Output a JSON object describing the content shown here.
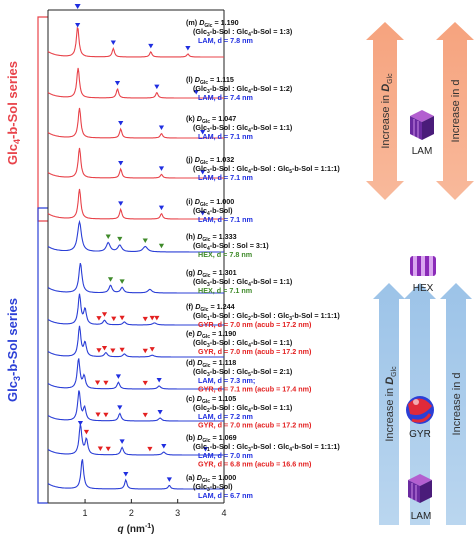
{
  "chart_data": {
    "type": "line",
    "xlabel_base": "q",
    "xlabel_unit": "(nm",
    "xlabel_exp": "-1",
    "xlabel_close": ")",
    "xlim": [
      0.2,
      4.0
    ],
    "x_ticks": [
      "1",
      "2",
      "3",
      "4"
    ],
    "y_axis": "stacked intensity profiles (offset), no tick labels",
    "grid": false,
    "series_groups": {
      "top": {
        "label_main": "Glc",
        "label_sub": "4",
        "label_rest": "-b-Sol series",
        "color": "#e8434a"
      },
      "bottom": {
        "label_main": "Glc",
        "label_sub": "3",
        "label_rest": "-b-Sol series",
        "color": "#2b3fd6"
      }
    },
    "principal_peak_q": 0.84,
    "marker_colors": {
      "LAM": "#1f2ee0",
      "HEX": "#3f8a2a",
      "GYR": "#e32020"
    },
    "series": [
      {
        "id": "m",
        "group": "top",
        "prefix": "(m)",
        "d_value": "= 1.190",
        "comp": [
          [
            "(Glc",
            ""
          ],
          [
            "3",
            "sub"
          ],
          [
            "-b-Sol : Glc",
            ""
          ],
          [
            "4",
            "sub"
          ],
          [
            "-b-Sol = 1:3)",
            ""
          ]
        ],
        "phases": [
          {
            "kind": "LAM",
            "text": "LAM, d = 7.8 nm"
          }
        ],
        "peaks": [
          {
            "q": 0.84,
            "h": 1.0,
            "w": 0.035
          },
          {
            "q": 1.61,
            "h": 0.28,
            "w": 0.03
          },
          {
            "q": 2.42,
            "h": 0.17,
            "w": 0.03
          },
          {
            "q": 3.22,
            "h": 0.1,
            "w": 0.03
          }
        ],
        "markers": [
          {
            "q": 0.84,
            "kind": "LAM"
          },
          {
            "q": 1.61,
            "kind": "LAM"
          },
          {
            "q": 2.42,
            "kind": "LAM"
          },
          {
            "q": 3.22,
            "kind": "LAM"
          }
        ]
      },
      {
        "id": "l",
        "group": "top",
        "prefix": "(l)",
        "d_value": "= 1.115",
        "comp": [
          [
            "(Glc",
            ""
          ],
          [
            "3",
            "sub"
          ],
          [
            "-b-Sol : Glc",
            ""
          ],
          [
            "4",
            "sub"
          ],
          [
            "-b-Sol = 1:2)",
            ""
          ]
        ],
        "phases": [
          {
            "kind": "LAM",
            "text": "LAM, d = 7.4 nm"
          }
        ],
        "peaks": [
          {
            "q": 0.85,
            "h": 1.0,
            "w": 0.035
          },
          {
            "q": 1.7,
            "h": 0.3,
            "w": 0.03
          },
          {
            "q": 2.55,
            "h": 0.18,
            "w": 0.03
          }
        ],
        "markers": [
          {
            "q": 1.7,
            "kind": "LAM"
          },
          {
            "q": 2.55,
            "kind": "LAM"
          },
          {
            "q": 3.4,
            "kind": "LAM"
          }
        ]
      },
      {
        "id": "k",
        "group": "top",
        "prefix": "(k)",
        "d_value": "= 1.047",
        "comp": [
          [
            "(Glc",
            ""
          ],
          [
            "3",
            "sub"
          ],
          [
            "-b-Sol : Glc",
            ""
          ],
          [
            "4",
            "sub"
          ],
          [
            "-b-Sol = 1:1)",
            ""
          ]
        ],
        "phases": [
          {
            "kind": "LAM",
            "text": "LAM, d = 7.1 nm"
          }
        ],
        "peaks": [
          {
            "q": 0.88,
            "h": 1.0,
            "w": 0.035
          },
          {
            "q": 1.77,
            "h": 0.3,
            "w": 0.03
          },
          {
            "q": 2.65,
            "h": 0.15,
            "w": 0.03
          }
        ],
        "markers": [
          {
            "q": 1.77,
            "kind": "LAM"
          },
          {
            "q": 2.65,
            "kind": "LAM"
          },
          {
            "q": 3.54,
            "kind": "LAM"
          }
        ]
      },
      {
        "id": "j",
        "group": "top",
        "prefix": "(j)",
        "d_value": "= 1.032",
        "comp": [
          [
            "(Glc",
            ""
          ],
          [
            "3",
            "sub"
          ],
          [
            "-b-Sol : Glc",
            ""
          ],
          [
            "4",
            "sub"
          ],
          [
            "-b-Sol : Glc",
            ""
          ],
          [
            "5",
            "sub"
          ],
          [
            "-b-Sol = 1:1:1)",
            ""
          ]
        ],
        "phases": [
          {
            "kind": "LAM",
            "text": "LAM, d = 7.1 nm"
          }
        ],
        "peaks": [
          {
            "q": 0.88,
            "h": 1.0,
            "w": 0.035
          },
          {
            "q": 1.77,
            "h": 0.3,
            "w": 0.03
          },
          {
            "q": 2.65,
            "h": 0.12,
            "w": 0.03
          }
        ],
        "markers": [
          {
            "q": 1.77,
            "kind": "LAM"
          },
          {
            "q": 2.65,
            "kind": "LAM"
          },
          {
            "q": 3.54,
            "kind": "LAM"
          }
        ]
      },
      {
        "id": "i",
        "group": "top",
        "prefix": "(i)",
        "d_value": "= 1.000",
        "comp": [
          [
            "(Glc",
            ""
          ],
          [
            "4",
            "sub"
          ],
          [
            "-b-Sol)",
            ""
          ]
        ],
        "phases": [
          {
            "kind": "LAM",
            "text": "LAM, d = 7.1 nm"
          }
        ],
        "peaks": [
          {
            "q": 0.88,
            "h": 1.0,
            "w": 0.035
          },
          {
            "q": 1.77,
            "h": 0.32,
            "w": 0.03
          },
          {
            "q": 2.65,
            "h": 0.18,
            "w": 0.03
          }
        ],
        "markers": [
          {
            "q": 1.77,
            "kind": "LAM"
          },
          {
            "q": 2.65,
            "kind": "LAM"
          },
          {
            "q": 3.54,
            "kind": "LAM"
          }
        ]
      },
      {
        "id": "h",
        "group": "bottom",
        "prefix": "(h)",
        "d_value": "= 1.333",
        "comp": [
          [
            "(Glc",
            ""
          ],
          [
            "4",
            "sub"
          ],
          [
            "-b-Sol : Sol = 3:1)",
            ""
          ]
        ],
        "phases": [
          {
            "kind": "HEX",
            "text": "HEX, d = 7.8 nm"
          }
        ],
        "peaks": [
          {
            "q": 0.88,
            "h": 1.0,
            "w": 0.05
          },
          {
            "q": 1.5,
            "h": 0.3,
            "w": 0.05
          },
          {
            "q": 1.75,
            "h": 0.22,
            "w": 0.05
          },
          {
            "q": 2.3,
            "h": 0.18,
            "w": 0.06
          }
        ],
        "markers": [
          {
            "q": 1.5,
            "kind": "HEX"
          },
          {
            "q": 1.75,
            "kind": "HEX"
          },
          {
            "q": 2.3,
            "kind": "HEX"
          },
          {
            "q": 2.65,
            "kind": "HEX"
          }
        ]
      },
      {
        "id": "g",
        "group": "bottom",
        "prefix": "(g)",
        "d_value": "= 1.301",
        "comp": [
          [
            "(Glc",
            ""
          ],
          [
            "3",
            "sub"
          ],
          [
            "-b-Sol : Glc",
            ""
          ],
          [
            "4",
            "sub"
          ],
          [
            "-b-Sol = 1:1)",
            ""
          ]
        ],
        "phases": [
          {
            "kind": "HEX",
            "text": "HEX, d = 7.1 nm"
          }
        ],
        "peaks": [
          {
            "q": 0.9,
            "h": 1.0,
            "w": 0.04
          },
          {
            "q": 1.55,
            "h": 0.25,
            "w": 0.04
          },
          {
            "q": 1.8,
            "h": 0.18,
            "w": 0.04
          },
          {
            "q": 2.4,
            "h": 0.12,
            "w": 0.05
          }
        ],
        "markers": [
          {
            "q": 1.55,
            "kind": "HEX"
          },
          {
            "q": 1.8,
            "kind": "HEX"
          }
        ]
      },
      {
        "id": "f",
        "group": "bottom",
        "prefix": "(f)",
        "d_value": "= 1.244",
        "comp": [
          [
            "(Glc",
            ""
          ],
          [
            "1",
            "sub"
          ],
          [
            "-b-Sol : Glc",
            ""
          ],
          [
            "2",
            "sub"
          ],
          [
            "-b-Sol : Glc",
            ""
          ],
          [
            "3",
            "sub"
          ],
          [
            "-b-Sol = 1:1:1)",
            ""
          ]
        ],
        "phases": [
          {
            "kind": "GYR",
            "text": "GYR, d = 7.0 nm (acub = 17.2 nm)"
          }
        ],
        "peaks": [
          {
            "q": 0.88,
            "h": 1.0,
            "w": 0.035
          },
          {
            "q": 1.0,
            "h": 0.5,
            "w": 0.035
          },
          {
            "q": 1.42,
            "h": 0.15,
            "w": 0.04
          },
          {
            "q": 1.85,
            "h": 0.1,
            "w": 0.04
          },
          {
            "q": 2.5,
            "h": 0.07,
            "w": 0.05
          }
        ],
        "markers": [
          {
            "q": 1.3,
            "kind": "GYR"
          },
          {
            "q": 1.42,
            "kind": "GYR"
          },
          {
            "q": 1.62,
            "kind": "GYR"
          },
          {
            "q": 1.8,
            "kind": "GYR"
          },
          {
            "q": 2.3,
            "kind": "GYR"
          },
          {
            "q": 2.45,
            "kind": "GYR"
          },
          {
            "q": 2.55,
            "kind": "GYR"
          }
        ]
      },
      {
        "id": "e",
        "group": "bottom",
        "prefix": "(e)",
        "d_value": "= 1.190",
        "comp": [
          [
            "(Glc",
            ""
          ],
          [
            "3",
            "sub"
          ],
          [
            "-b-Sol : Glc",
            ""
          ],
          [
            "4",
            "sub"
          ],
          [
            "-b-Sol = 1:1)",
            ""
          ]
        ],
        "phases": [
          {
            "kind": "GYR",
            "text": "GYR, d = 7.0 nm (acub = 17.2 nm)"
          }
        ],
        "peaks": [
          {
            "q": 0.88,
            "h": 1.0,
            "w": 0.035
          },
          {
            "q": 1.0,
            "h": 0.45,
            "w": 0.035
          },
          {
            "q": 1.45,
            "h": 0.14,
            "w": 0.04
          },
          {
            "q": 1.85,
            "h": 0.1,
            "w": 0.04
          },
          {
            "q": 2.45,
            "h": 0.06,
            "w": 0.05
          }
        ],
        "markers": [
          {
            "q": 1.3,
            "kind": "GYR"
          },
          {
            "q": 1.42,
            "kind": "GYR"
          },
          {
            "q": 1.6,
            "kind": "GYR"
          },
          {
            "q": 1.8,
            "kind": "GYR"
          },
          {
            "q": 2.3,
            "kind": "GYR"
          },
          {
            "q": 2.45,
            "kind": "GYR"
          }
        ]
      },
      {
        "id": "d",
        "group": "bottom",
        "prefix": "(d)",
        "d_value": "= 1.118",
        "comp": [
          [
            "(Glc",
            ""
          ],
          [
            "3",
            "sub"
          ],
          [
            "-b-Sol : Glc",
            ""
          ],
          [
            "5",
            "sub"
          ],
          [
            "-b-Sol = 2:1)",
            ""
          ]
        ],
        "phases": [
          {
            "kind": "LAM",
            "text": "LAM, d = 7.3 nm;"
          },
          {
            "kind": "GYR",
            "text": "GYR, d = 7.1 nm (acub = 17.4 nm)"
          }
        ],
        "peaks": [
          {
            "q": 0.86,
            "h": 1.0,
            "w": 0.035
          },
          {
            "q": 0.98,
            "h": 0.4,
            "w": 0.035
          },
          {
            "q": 1.72,
            "h": 0.22,
            "w": 0.035
          },
          {
            "q": 2.6,
            "h": 0.1,
            "w": 0.04
          }
        ],
        "markers": [
          {
            "q": 1.27,
            "kind": "GYR"
          },
          {
            "q": 1.45,
            "kind": "GYR"
          },
          {
            "q": 1.72,
            "kind": "LAM"
          },
          {
            "q": 2.3,
            "kind": "GYR"
          },
          {
            "q": 2.6,
            "kind": "LAM"
          }
        ]
      },
      {
        "id": "c",
        "group": "bottom",
        "prefix": "(c)",
        "d_value": "= 1.105",
        "comp": [
          [
            "(Glc",
            ""
          ],
          [
            "2",
            "sub"
          ],
          [
            "-b-Sol : Glc",
            ""
          ],
          [
            "4",
            "sub"
          ],
          [
            "-b-Sol = 1:1)",
            ""
          ]
        ],
        "phases": [
          {
            "kind": "LAM",
            "text": "LAM, d = 7.2 nm"
          },
          {
            "kind": "GYR",
            "text": "GYR, d = 7.0 nm (acub = 17.2 nm)"
          }
        ],
        "peaks": [
          {
            "q": 0.87,
            "h": 1.0,
            "w": 0.035
          },
          {
            "q": 0.99,
            "h": 0.42,
            "w": 0.035
          },
          {
            "q": 1.75,
            "h": 0.25,
            "w": 0.035
          },
          {
            "q": 2.62,
            "h": 0.1,
            "w": 0.04
          }
        ],
        "markers": [
          {
            "q": 1.28,
            "kind": "GYR"
          },
          {
            "q": 1.45,
            "kind": "GYR"
          },
          {
            "q": 1.75,
            "kind": "LAM"
          },
          {
            "q": 2.3,
            "kind": "GYR"
          },
          {
            "q": 2.62,
            "kind": "LAM"
          }
        ]
      },
      {
        "id": "b",
        "group": "bottom",
        "prefix": "(b)",
        "d_value": "= 1.069",
        "comp": [
          [
            "(Glc",
            ""
          ],
          [
            "1",
            "sub"
          ],
          [
            "-b-Sol : Glc",
            ""
          ],
          [
            "3",
            "sub"
          ],
          [
            "-b-Sol : Glc",
            ""
          ],
          [
            "4",
            "sub"
          ],
          [
            "-b-Sol = 1:1:1)",
            ""
          ]
        ],
        "phases": [
          {
            "kind": "LAM",
            "text": "LAM, d = 7.0 nm"
          },
          {
            "kind": "GYR",
            "text": "GYR, d = 6.8 nm (acub = 16.6 nm)"
          }
        ],
        "peaks": [
          {
            "q": 0.9,
            "h": 1.0,
            "w": 0.035
          },
          {
            "q": 1.03,
            "h": 0.5,
            "w": 0.035
          },
          {
            "q": 1.8,
            "h": 0.25,
            "w": 0.035
          },
          {
            "q": 2.7,
            "h": 0.1,
            "w": 0.04
          }
        ],
        "markers": [
          {
            "q": 0.9,
            "kind": "LAM"
          },
          {
            "q": 1.03,
            "kind": "GYR"
          },
          {
            "q": 1.33,
            "kind": "GYR"
          },
          {
            "q": 1.5,
            "kind": "GYR"
          },
          {
            "q": 1.8,
            "kind": "LAM"
          },
          {
            "q": 2.4,
            "kind": "GYR"
          },
          {
            "q": 2.7,
            "kind": "LAM"
          },
          {
            "q": 3.6,
            "kind": "LAM"
          }
        ]
      },
      {
        "id": "a",
        "group": "bottom",
        "prefix": "(a)",
        "d_value": "= 1.000",
        "comp": [
          [
            "(Glc",
            ""
          ],
          [
            "3",
            "sub"
          ],
          [
            "-b-Sol)",
            ""
          ]
        ],
        "phases": [
          {
            "kind": "LAM",
            "text": "LAM, d = 6.7 nm"
          }
        ],
        "peaks": [
          {
            "q": 0.94,
            "h": 1.0,
            "w": 0.035
          },
          {
            "q": 1.88,
            "h": 0.3,
            "w": 0.03
          },
          {
            "q": 2.82,
            "h": 0.12,
            "w": 0.03
          }
        ],
        "markers": [
          {
            "q": 1.88,
            "kind": "LAM"
          },
          {
            "q": 2.82,
            "kind": "LAM"
          }
        ]
      }
    ],
    "annotations": {
      "d_glc_symbol": "D",
      "d_glc_sub": "Glc",
      "increase_d_glc_prefix": "Increase in ",
      "increase_d": "Increase in d",
      "morphology_labels": {
        "lam_top": "LAM",
        "hex": "HEX",
        "gyr": "GYR",
        "lam_bottom": "LAM"
      }
    }
  }
}
